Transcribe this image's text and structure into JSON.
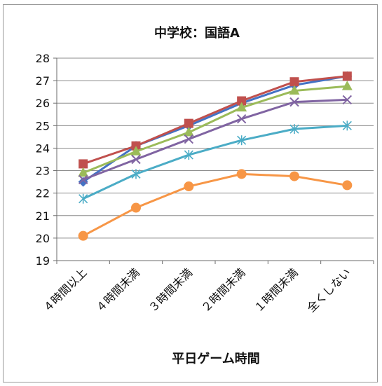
{
  "chart_data": {
    "type": "line",
    "title": "中学校：国語A",
    "xlabel": "平日ゲーム時間",
    "ylabel": "",
    "categories": [
      "４時間以上",
      "４時間未満",
      "３時間未満",
      "２時間未満",
      "１時間未満",
      "全くしない"
    ],
    "ylim": [
      19,
      28
    ],
    "yticks": [
      19,
      20,
      21,
      22,
      23,
      24,
      25,
      26,
      27,
      28
    ],
    "grid": true,
    "series": [
      {
        "values": [
          22.5,
          24.1,
          25.0,
          26.0,
          26.8,
          27.2
        ],
        "color": "#4472C4",
        "marker": "diamond"
      },
      {
        "values": [
          23.3,
          24.1,
          25.1,
          26.1,
          26.95,
          27.2
        ],
        "color": "#C0504D",
        "marker": "square"
      },
      {
        "values": [
          22.9,
          23.85,
          24.7,
          25.8,
          26.55,
          26.75
        ],
        "color": "#9BBB59",
        "marker": "triangle"
      },
      {
        "values": [
          22.6,
          23.5,
          24.4,
          25.3,
          26.05,
          26.15
        ],
        "color": "#8064A2",
        "marker": "x"
      },
      {
        "values": [
          21.75,
          22.85,
          23.7,
          24.35,
          24.85,
          25.0
        ],
        "color": "#4BACC6",
        "marker": "star"
      },
      {
        "values": [
          20.1,
          21.35,
          22.3,
          22.85,
          22.75,
          22.35
        ],
        "color": "#F79646",
        "marker": "circle"
      }
    ]
  }
}
